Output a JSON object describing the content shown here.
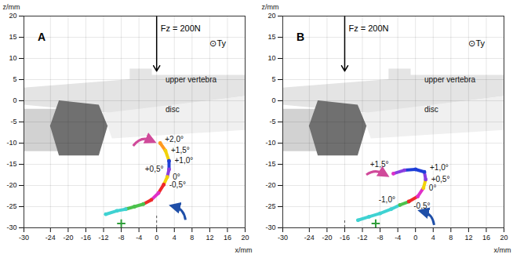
{
  "chart_data": [
    {
      "type": "line",
      "title": "A",
      "x_label": "x/mm",
      "y_label": "z/mm",
      "xlim": [
        -30,
        20
      ],
      "ylim": [
        -30,
        20
      ],
      "xticks": [
        -30,
        -24,
        -20,
        -16,
        -12,
        -8,
        -4,
        0,
        4,
        8,
        12,
        16,
        20
      ],
      "yticks": [
        -30,
        -25,
        -20,
        -15,
        -10,
        -5,
        0,
        5,
        10,
        15,
        20
      ],
      "grid": true,
      "x": [
        0.8,
        2.0,
        2.8,
        2.8,
        2.4,
        1.6,
        0.4,
        -1.2,
        -3.0,
        -5.0,
        -7.0,
        -9.0,
        -11.5
      ],
      "values": [
        -10.0,
        -11.8,
        -14.2,
        -16.2,
        -18.0,
        -19.8,
        -21.8,
        -23.4,
        -24.4,
        -25.0,
        -25.6,
        -26.0,
        -26.8
      ],
      "colors": [
        "#ff9a1f",
        "#f2d20a",
        "#1e3fd8",
        "#8a3ee0",
        "#f2d20a",
        "#ee2a2a",
        "#e030c8",
        "#ee2a2a",
        "#4cc24c",
        "#4cc24c",
        "#3fd2d2",
        "#3fd2d2",
        "#3fd2d2"
      ],
      "point_labels": [
        "+2,0°",
        "+1,5°",
        "+1,0°",
        "+0,5°",
        "0°",
        "-0,5°",
        null,
        null,
        null,
        null,
        null,
        null,
        null
      ],
      "force": {
        "x": 0,
        "label": "Fz = 200N"
      },
      "torque_label": "⊙Ty",
      "annotations": [
        "upper vertebra",
        "disc"
      ],
      "reference_point": {
        "x": -8,
        "y": -29,
        "color": "#2f9e3a",
        "marker": "plus"
      }
    },
    {
      "type": "line",
      "title": "B",
      "x_label": "x/mm",
      "y_label": "z/mm",
      "xlim": [
        -30,
        20
      ],
      "ylim": [
        -30,
        20
      ],
      "xticks": [
        -30,
        -24,
        -20,
        -16,
        -12,
        -8,
        -4,
        0,
        4,
        8,
        12,
        16,
        20
      ],
      "yticks": [
        -30,
        -25,
        -20,
        -15,
        -10,
        -5,
        0,
        5,
        10,
        15,
        20
      ],
      "grid": true,
      "x": [
        -13.0,
        -10.5,
        -8.0,
        -5.5,
        -3.5,
        -1.5,
        0.5,
        1.8,
        2.3,
        2.0,
        0.0,
        -2.5,
        -5.0
      ],
      "values": [
        -28.2,
        -27.4,
        -26.6,
        -25.6,
        -24.6,
        -23.8,
        -22.6,
        -20.6,
        -18.6,
        -16.8,
        -16.2,
        -16.4,
        -17.2
      ],
      "colors": [
        "#3fd2d2",
        "#3fd2d2",
        "#3fd2d2",
        "#3fd2d2",
        "#4cc24c",
        "#ee2a2a",
        "#e030c8",
        "#f2d20a",
        "#8a3ee0",
        "#1e3fd8",
        "#1e3fd8",
        "#8a3ee0",
        "#e030c8"
      ],
      "point_labels": [
        null,
        null,
        null,
        null,
        "-1,0°",
        "-0,5°",
        null,
        "0°",
        "+0,5°",
        "+1,0°",
        null,
        null,
        "+1,5°"
      ],
      "force": {
        "x": -16,
        "label": "Fz = 200N"
      },
      "torque_label": "⊙Ty",
      "annotations": [
        "upper vertebra",
        "disc"
      ],
      "reference_point": {
        "x": -9,
        "y": -29,
        "color": "#2f9e3a",
        "marker": "plus"
      }
    }
  ]
}
